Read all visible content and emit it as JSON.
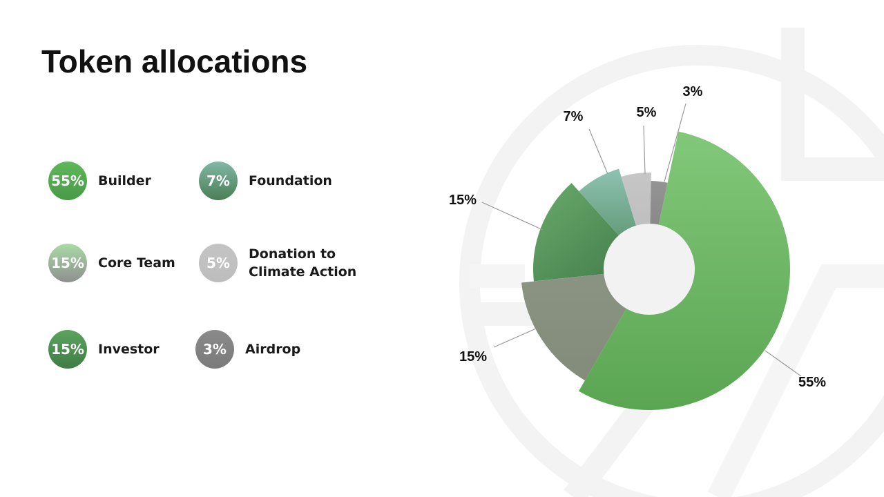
{
  "title": "Token allocations",
  "colors": {
    "builder": "#6fbf6a",
    "core_team": "#8a9482",
    "investor": "#4f8f55",
    "foundation": "#7fb8a4",
    "donation": "#c2c2c2",
    "airdrop": "#8c8c8c",
    "hole": "#f2f2f2",
    "leader": "#9a9a9a"
  },
  "legend": [
    {
      "pct": "55%",
      "label": "Builder",
      "color": "#5fb85a",
      "color2": "#4a9a48"
    },
    {
      "pct": "7%",
      "label": "Foundation",
      "color": "#82b8a6",
      "color2": "#4a7e56"
    },
    {
      "pct": "15%",
      "label": "Core Team",
      "color": "#a9dba6",
      "color2": "#8f8f8f"
    },
    {
      "pct": "5%",
      "label": "Donation to\nClimate Action",
      "color": "#c4c4c4",
      "color2": "#bdbdbd"
    },
    {
      "pct": "15%",
      "label": "Investor",
      "color": "#5aa35e",
      "color2": "#3f7d45"
    },
    {
      "pct": "3%",
      "label": "Airdrop",
      "color": "#8a8a8a",
      "color2": "#7a7a7a"
    }
  ],
  "chart_data": {
    "type": "pie",
    "title": "",
    "slices": [
      {
        "label": "Builder",
        "value": 55,
        "display": "55%"
      },
      {
        "label": "Core Team",
        "value": 15,
        "display": "15%"
      },
      {
        "label": "Investor",
        "value": 15,
        "display": "15%"
      },
      {
        "label": "Foundation",
        "value": 7,
        "display": "7%"
      },
      {
        "label": "Donation to Climate Action",
        "value": 5,
        "display": "5%"
      },
      {
        "label": "Airdrop",
        "value": 3,
        "display": "3%"
      }
    ]
  }
}
